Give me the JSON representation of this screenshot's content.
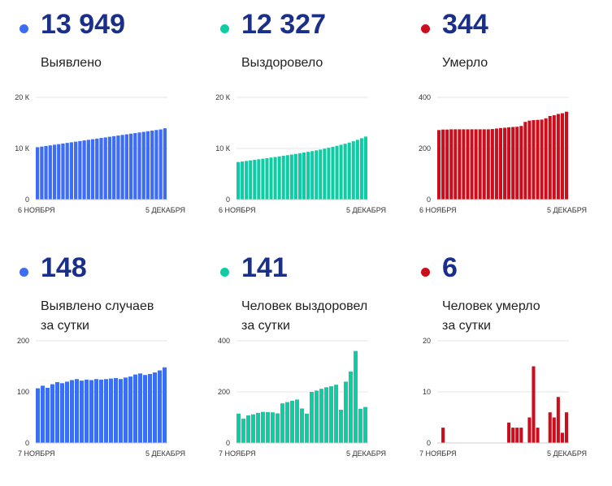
{
  "colors": {
    "blue": "#3d6cf5",
    "green": "#0fcca5",
    "red": "#cc0d1c",
    "number": "#1a2f8a"
  },
  "panels": [
    {
      "value": "13 949",
      "label": [
        "Выявлено"
      ],
      "color": "blue"
    },
    {
      "value": "12 327",
      "label": [
        "Выздоровело"
      ],
      "color": "green"
    },
    {
      "value": "344",
      "label": [
        "Умерло"
      ],
      "color": "red"
    },
    {
      "value": "148",
      "label": [
        "Выявлено случаев",
        "за сутки"
      ],
      "color": "blue"
    },
    {
      "value": "141",
      "label": [
        "Человек выздоровел",
        "за сутки"
      ],
      "color": "green"
    },
    {
      "value": "6",
      "label": [
        "Человек умерло",
        "за сутки"
      ],
      "color": "red"
    }
  ],
  "chart_data": [
    {
      "type": "bar",
      "ylim": [
        0,
        20000
      ],
      "yticks": [
        "0",
        "10 К",
        "20 К"
      ],
      "ytick_values": [
        0,
        10000,
        20000
      ],
      "xticks": [
        "6 НОЯБРЯ",
        "5 ДЕКАБРЯ"
      ],
      "values": [
        10250,
        10370,
        10490,
        10610,
        10730,
        10850,
        10970,
        11090,
        11210,
        11330,
        11450,
        11570,
        11690,
        11810,
        11930,
        12050,
        12170,
        12290,
        12410,
        12530,
        12650,
        12770,
        12890,
        13010,
        13130,
        13250,
        13370,
        13490,
        13610,
        13730,
        13949
      ]
    },
    {
      "type": "bar",
      "ylim": [
        0,
        20000
      ],
      "yticks": [
        "0",
        "10 К",
        "20 К"
      ],
      "ytick_values": [
        0,
        10000,
        20000
      ],
      "xticks": [
        "6 НОЯБРЯ",
        "5 ДЕКАБРЯ"
      ],
      "values": [
        7350,
        7450,
        7560,
        7670,
        7780,
        7890,
        8000,
        8110,
        8220,
        8330,
        8450,
        8570,
        8690,
        8810,
        8940,
        9070,
        9200,
        9340,
        9480,
        9630,
        9790,
        9960,
        10140,
        10330,
        10520,
        10720,
        10930,
        11150,
        11410,
        11690,
        12000,
        12327
      ]
    },
    {
      "type": "bar",
      "ylim": [
        0,
        400
      ],
      "yticks": [
        "0",
        "200",
        "400"
      ],
      "ytick_values": [
        0,
        200,
        400
      ],
      "xticks": [
        "6 НОЯБРЯ",
        "5 ДЕКАБРЯ"
      ],
      "values": [
        272,
        274,
        274,
        275,
        275,
        275,
        275,
        275,
        275,
        275,
        275,
        275,
        275,
        276,
        278,
        280,
        281,
        283,
        284,
        285,
        288,
        304,
        309,
        311,
        312,
        313,
        318,
        327,
        330,
        335,
        338,
        344
      ]
    },
    {
      "type": "bar",
      "ylim": [
        0,
        200
      ],
      "yticks": [
        "0",
        "100",
        "200"
      ],
      "ytick_values": [
        0,
        100,
        200
      ],
      "xticks": [
        "7 НОЯБРЯ",
        "5 ДЕКАБРЯ"
      ],
      "values": [
        107,
        112,
        108,
        115,
        119,
        117,
        120,
        123,
        125,
        122,
        124,
        123,
        125,
        124,
        125,
        126,
        127,
        125,
        128,
        130,
        134,
        136,
        133,
        135,
        138,
        142,
        148
      ]
    },
    {
      "type": "bar",
      "ylim": [
        0,
        400
      ],
      "yticks": [
        "0",
        "200",
        "400"
      ],
      "ytick_values": [
        0,
        200,
        400
      ],
      "xticks": [
        "7 НОЯБРЯ",
        "5 ДЕКАБРЯ"
      ],
      "values": [
        115,
        95,
        108,
        112,
        118,
        122,
        121,
        120,
        116,
        155,
        160,
        165,
        170,
        135,
        115,
        200,
        205,
        212,
        218,
        222,
        228,
        130,
        240,
        280,
        360,
        134,
        141
      ]
    },
    {
      "type": "bar",
      "ylim": [
        0,
        20
      ],
      "yticks": [
        "0",
        "10",
        "20"
      ],
      "ytick_values": [
        0,
        10,
        20
      ],
      "xticks": [
        "7 НОЯБРЯ",
        "5 ДЕКАБРЯ"
      ],
      "values": [
        0,
        3,
        0,
        0,
        0,
        0,
        0,
        0,
        0,
        0,
        0,
        0,
        0,
        0,
        0,
        0,
        0,
        4,
        3,
        3,
        3,
        0,
        5,
        15,
        3,
        0,
        0,
        6,
        5,
        9,
        2,
        6
      ]
    }
  ]
}
